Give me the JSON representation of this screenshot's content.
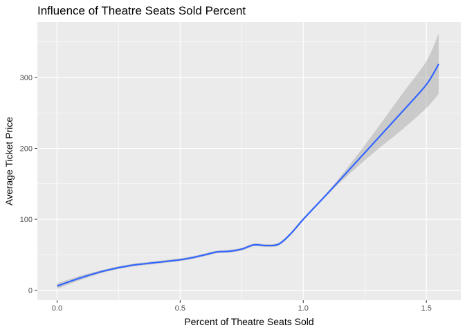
{
  "chart_data": {
    "type": "line",
    "title": "Influence of Theatre Seats Sold Percent",
    "xlabel": "Percent of Theatre Seats Sold",
    "ylabel": "Average Ticket Price",
    "xlim": [
      -0.08,
      1.64
    ],
    "ylim": [
      -14,
      378
    ],
    "x_ticks": [
      0.0,
      0.5,
      1.0,
      1.5
    ],
    "x_tick_labels": [
      "0.0",
      "0.5",
      "1.0",
      "1.5"
    ],
    "x_minor_ticks": [
      0.25,
      0.75,
      1.25
    ],
    "y_ticks": [
      0,
      100,
      200,
      300
    ],
    "y_tick_labels": [
      "0",
      "100",
      "200",
      "300"
    ],
    "y_minor_ticks": [
      50,
      150,
      250,
      350
    ],
    "grid": true,
    "legend": "none",
    "series": [
      {
        "smoothing": "loess",
        "color": "#3366FF",
        "band_color": "#999999",
        "x": [
          0.0,
          0.1,
          0.2,
          0.3,
          0.4,
          0.5,
          0.55,
          0.6,
          0.65,
          0.7,
          0.75,
          0.8,
          0.85,
          0.9,
          0.95,
          1.0,
          1.1,
          1.2,
          1.3,
          1.4,
          1.5,
          1.55
        ],
        "y": [
          6,
          18,
          28,
          35,
          39,
          43,
          46,
          50,
          54,
          55,
          58,
          64,
          63,
          65,
          80,
          100,
          137,
          175,
          213,
          251,
          290,
          319
        ],
        "lower": [
          2,
          15,
          26,
          33,
          37,
          41,
          44,
          48,
          52,
          53,
          56,
          62,
          61,
          63,
          78,
          98,
          135,
          168,
          198,
          226,
          257,
          277
        ],
        "upper": [
          10,
          21,
          30,
          37,
          41,
          45,
          48,
          52,
          56,
          57,
          60,
          66,
          65,
          67,
          82,
          102,
          139,
          182,
          228,
          276,
          323,
          362
        ]
      }
    ]
  }
}
